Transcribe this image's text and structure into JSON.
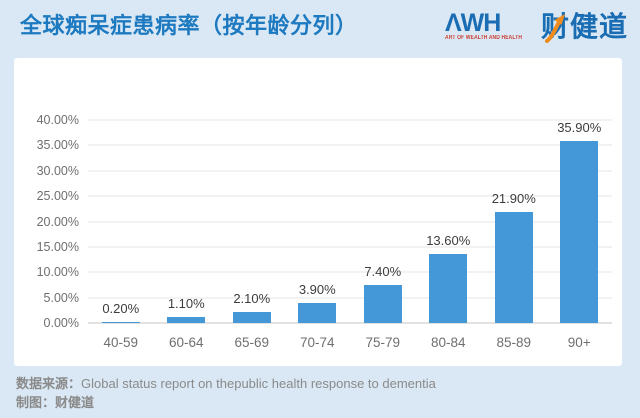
{
  "header": {
    "title": "全球痴呆症患病率（按年龄分列）",
    "logo": {
      "awh_text": "ΛWH",
      "tagline": "ART OF WEALTH AND HEALTH",
      "brand_cn": "财健道"
    }
  },
  "chart_data": {
    "type": "bar",
    "title": "全球痴呆症患病率（按年龄分列）",
    "categories": [
      "40-59",
      "60-64",
      "65-69",
      "70-74",
      "75-79",
      "80-84",
      "85-89",
      "90+"
    ],
    "values": [
      0.2,
      1.1,
      2.1,
      3.9,
      7.4,
      13.6,
      21.9,
      35.9
    ],
    "value_labels": [
      "0.20%",
      "1.10%",
      "2.10%",
      "3.90%",
      "7.40%",
      "13.60%",
      "21.90%",
      "35.90%"
    ],
    "y_ticks": [
      "40.00%",
      "35.00%",
      "30.00%",
      "25.00%",
      "20.00%",
      "15.00%",
      "10.00%",
      "5.00%",
      "0.00%"
    ],
    "ylim": [
      0,
      40
    ],
    "xlabel": "",
    "ylabel": "",
    "grid": true,
    "legend": "none",
    "bar_color": "#4598d8"
  },
  "footer": {
    "source_label": "数据来源：",
    "source_text": "Global status report on thepublic health response to dementia",
    "credit_label": "制图：",
    "credit_text": "财健道"
  },
  "colors": {
    "page_background": "#d9e8f4",
    "card_background": "#ffffff",
    "title_blue": "#1d79c0",
    "bar_blue": "#4598d8",
    "logo_blue": "#1a6db3",
    "logo_orange": "#f08c1c",
    "logo_tagline_red": "#cc3b2f",
    "grid_gray": "#e6e6e6",
    "axis_gray": "#c4c4c4",
    "tick_gray": "#6f6f6f",
    "data_label_gray": "#3d3d3d",
    "footer_gray": "#8a8a8a"
  }
}
